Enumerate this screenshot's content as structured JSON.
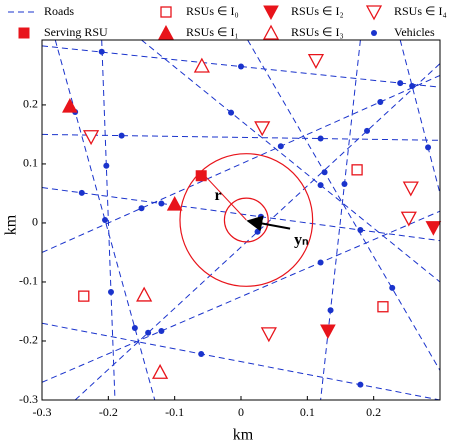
{
  "chart_data": {
    "type": "scatter",
    "xlabel": "km",
    "ylabel": "km",
    "xlim": [
      -0.3,
      0.3
    ],
    "ylim": [
      -0.3,
      0.31
    ],
    "xticks": [
      -0.3,
      -0.2,
      -0.1,
      0,
      0.1,
      0.2
    ],
    "yticks": [
      -0.3,
      -0.2,
      -0.1,
      0,
      0.1,
      0.2
    ],
    "roads": {
      "name": "Roads",
      "color": "#1a33cc",
      "segments": [
        {
          "x": [
            -0.3,
            0.3
          ],
          "y": [
            0.06,
            -0.03
          ]
        },
        {
          "x": [
            -0.28,
            -0.13
          ],
          "y": [
            0.31,
            -0.3
          ]
        },
        {
          "x": [
            -0.21,
            -0.19
          ],
          "y": [
            0.31,
            -0.3
          ]
        },
        {
          "x": [
            0.24,
            0.3
          ],
          "y": [
            0.31,
            0.05
          ]
        },
        {
          "x": [
            0.18,
            0.12
          ],
          "y": [
            0.31,
            -0.3
          ]
        },
        {
          "x": [
            -0.3,
            0.3
          ],
          "y": [
            -0.05,
            0.25
          ]
        },
        {
          "x": [
            -0.3,
            0.3
          ],
          "y": [
            -0.27,
            0.02
          ]
        },
        {
          "x": [
            -0.25,
            0.3
          ],
          "y": [
            -0.3,
            0.27
          ]
        },
        {
          "x": [
            -0.3,
            0.3
          ],
          "y": [
            0.3,
            0.23
          ]
        },
        {
          "x": [
            -0.15,
            0.3
          ],
          "y": [
            0.31,
            -0.1
          ]
        },
        {
          "x": [
            -0.3,
            0.3
          ],
          "y": [
            0.15,
            0.14
          ]
        },
        {
          "x": [
            0.01,
            0.3
          ],
          "y": [
            0.31,
            -0.25
          ]
        },
        {
          "x": [
            -0.3,
            0.3
          ],
          "y": [
            -0.17,
            -0.3
          ]
        }
      ]
    },
    "series": [
      {
        "name": "Serving RSU",
        "color": "#e8141b",
        "marker": "square-filled",
        "x": [
          -0.06
        ],
        "y": [
          0.08
        ]
      },
      {
        "name": "RSUs ∈ I₀",
        "color": "#e8141b",
        "marker": "square-open",
        "x": [
          0.175,
          -0.237,
          0.214
        ],
        "y": [
          0.09,
          -0.124,
          -0.142
        ]
      },
      {
        "name": "RSUs ∈ I₁",
        "color": "#e8141b",
        "marker": "tri-up-filled",
        "x": [
          -0.258,
          -0.1
        ],
        "y": [
          0.198,
          0.032
        ]
      },
      {
        "name": "RSUs ∈ I₂",
        "color": "#e8141b",
        "marker": "tri-down-filled",
        "x": [
          0.29,
          0.131
        ],
        "y": [
          -0.008,
          -0.183
        ]
      },
      {
        "name": "RSUs ∈ I₃",
        "color": "#e8141b",
        "marker": "tri-up-open",
        "x": [
          -0.059,
          -0.122,
          -0.146
        ],
        "y": [
          0.266,
          -0.253,
          -0.122
        ]
      },
      {
        "name": "RSUs ∈ I₄",
        "color": "#e8141b",
        "marker": "tri-down-open",
        "x": [
          -0.226,
          0.113,
          0.032,
          0.256,
          0.253,
          0.042
        ],
        "y": [
          0.146,
          0.275,
          0.161,
          0.059,
          0.008,
          -0.188
        ]
      },
      {
        "name": "Vehicles",
        "color": "#1a33cc",
        "marker": "dot",
        "x": [
          -0.24,
          -0.12,
          0.03,
          0.18,
          -0.25,
          -0.205,
          -0.16,
          -0.203,
          -0.196,
          0.258,
          0.282,
          0.156,
          0.135,
          -0.15,
          0.06,
          0.21,
          -0.12,
          0.12,
          -0.14,
          0.025,
          0.19,
          -0.21,
          0,
          0.24,
          -0.015,
          0.12,
          -0.18,
          0.12,
          0.126,
          0.228,
          -0.06,
          0.18
        ],
        "y": [
          0.051,
          0.033,
          0.0105,
          -0.012,
          0.188,
          0.005,
          -0.178,
          0.097,
          -0.117,
          0.232,
          0.128,
          0.066,
          -0.148,
          0.025,
          0.13,
          0.205,
          -0.183,
          -0.067,
          -0.186,
          -0.015,
          0.156,
          0.29,
          0.265,
          0.237,
          0.187,
          0.064,
          0.148,
          0.143,
          0.086,
          -0.11,
          -0.222,
          -0.274
        ]
      }
    ],
    "circles": [
      {
        "x": 0.008,
        "y": 0.005,
        "r": 0.1
      },
      {
        "x": 0.008,
        "y": 0.005,
        "r": 0.033
      }
    ],
    "annotations": [
      {
        "text": "r",
        "x": -0.04,
        "y": 0.045
      },
      {
        "text": "yₙ",
        "x": 0.08,
        "y": -0.03
      }
    ]
  }
}
